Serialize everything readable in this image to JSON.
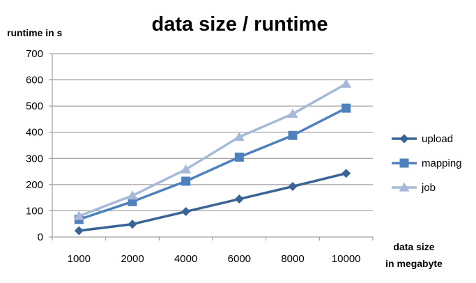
{
  "chart_data": {
    "type": "line",
    "title": "data size / runtime",
    "ylabel": "runtime in s",
    "xlabel_line1": "data size",
    "xlabel_line2": "in megabyte",
    "categories": [
      "1000",
      "2000",
      "4000",
      "6000",
      "8000",
      "10000"
    ],
    "ylim": [
      0,
      700
    ],
    "yticks": [
      0,
      100,
      200,
      300,
      400,
      500,
      600,
      700
    ],
    "grid": true,
    "legend": "right",
    "series": [
      {
        "name": "upload",
        "marker": "diamond",
        "color": "#3A6396",
        "values": [
          24,
          49,
          97,
          145,
          193,
          243
        ]
      },
      {
        "name": "mapping",
        "marker": "square",
        "color": "#4F81BD",
        "values": [
          67,
          135,
          213,
          305,
          388,
          492
        ]
      },
      {
        "name": "job",
        "marker": "triangle",
        "color": "#A7B9D9",
        "values": [
          80,
          158,
          258,
          382,
          470,
          585
        ]
      }
    ]
  }
}
